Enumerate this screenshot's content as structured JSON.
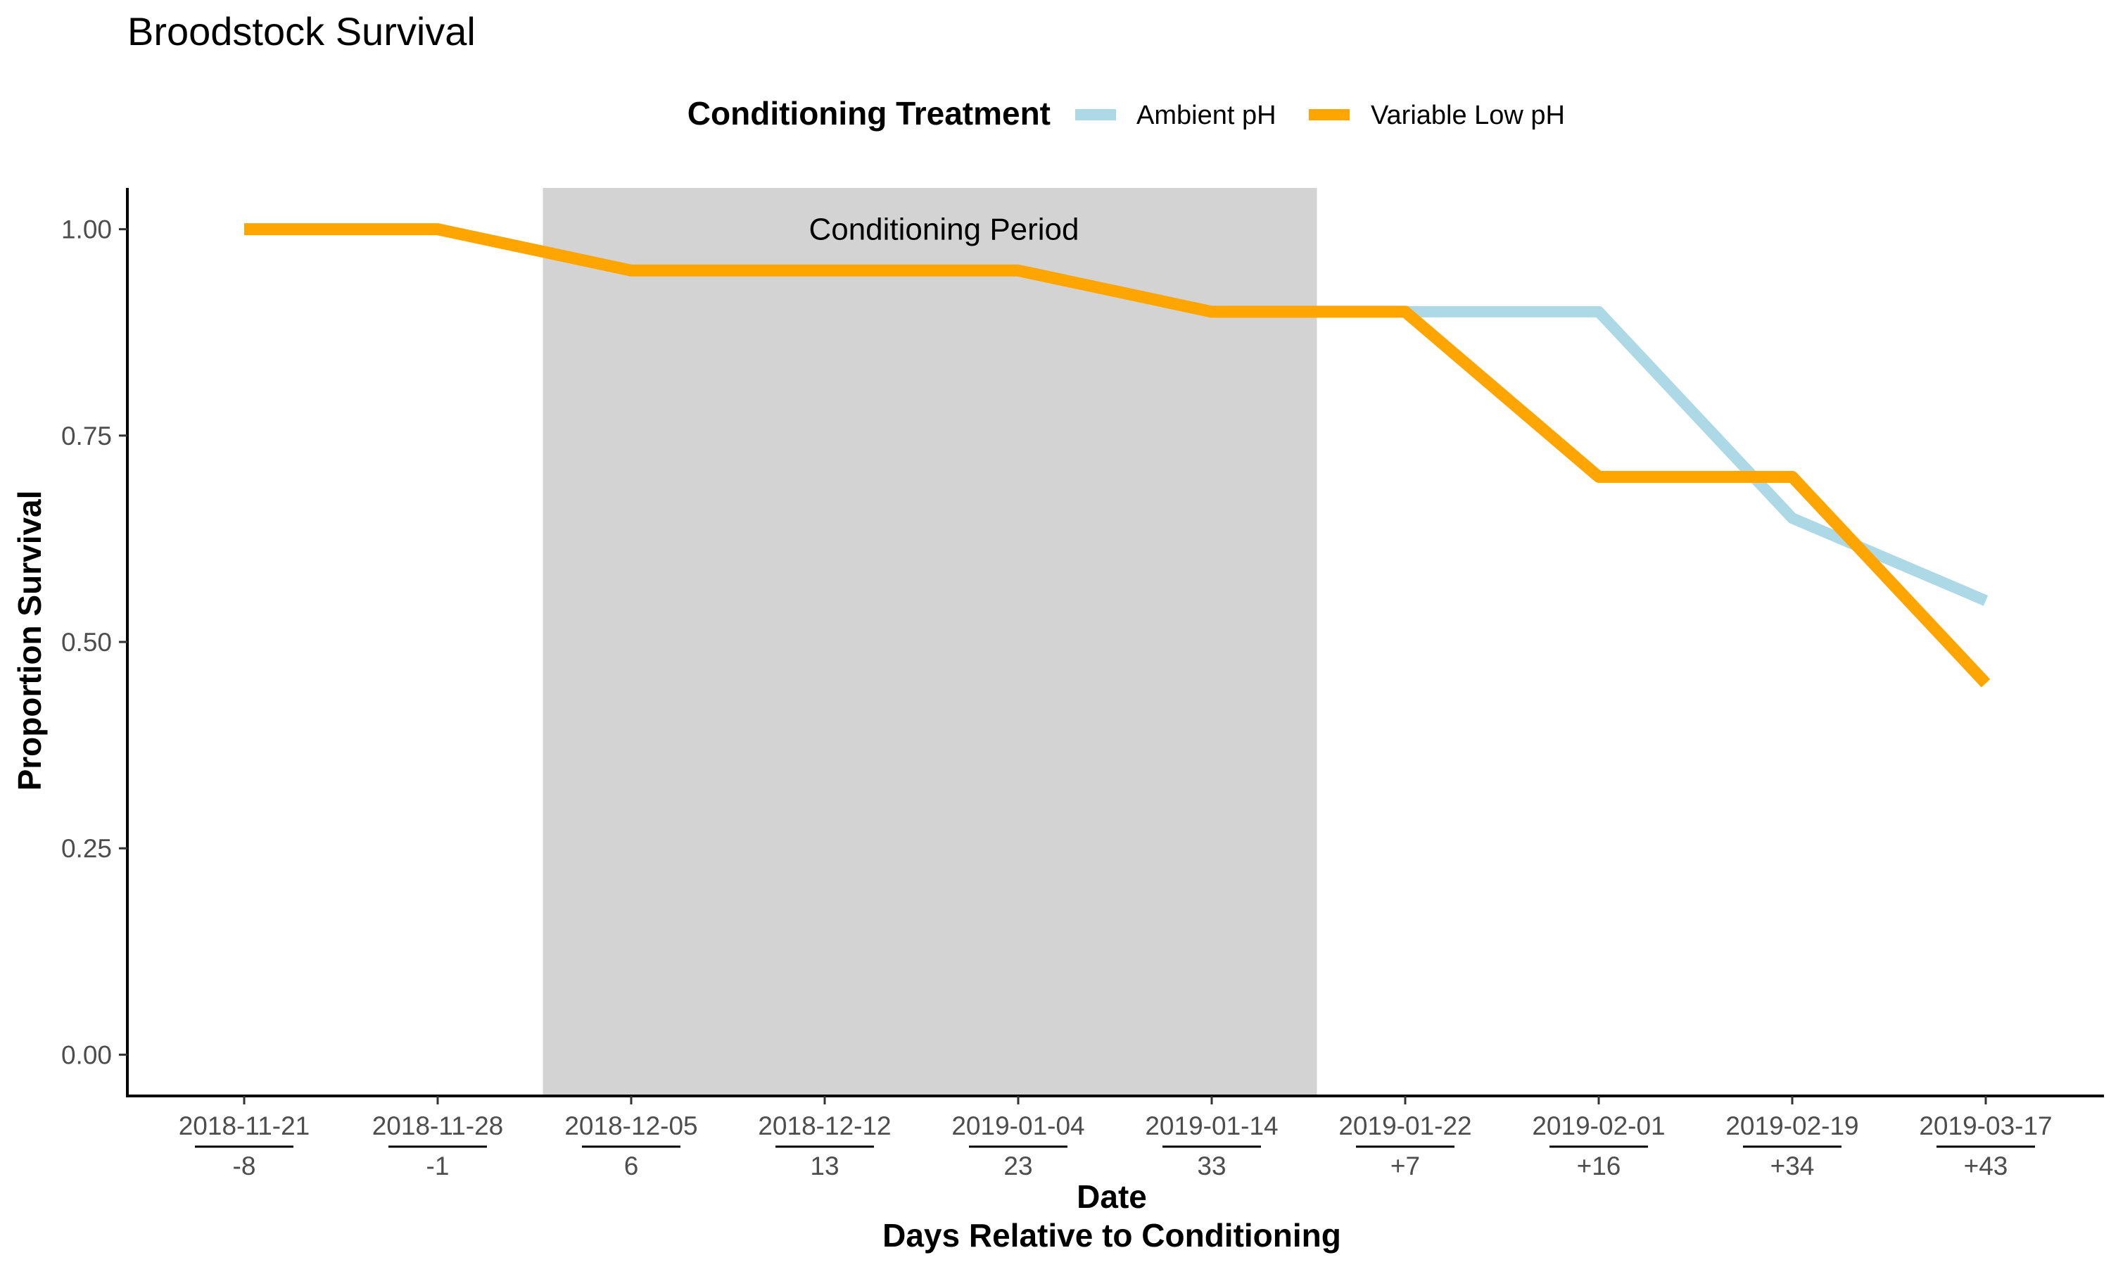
{
  "chart_data": {
    "type": "line",
    "title": "Broodstock Survival",
    "xlabel": "Date",
    "xlabel2": "Days Relative to Conditioning",
    "ylabel": "Proportion Survival",
    "ylim": [
      0,
      1
    ],
    "y_ticks": [
      "0.00",
      "0.25",
      "0.50",
      "0.75",
      "1.00"
    ],
    "y_tick_values": [
      0,
      0.25,
      0.5,
      0.75,
      1.0
    ],
    "categories": [
      "2018-11-21",
      "2018-11-28",
      "2018-12-05",
      "2018-12-12",
      "2019-01-04",
      "2019-01-14",
      "2019-01-22",
      "2019-02-01",
      "2019-02-19",
      "2019-03-17"
    ],
    "days_relative": [
      "-8",
      "-1",
      "6",
      "13",
      "23",
      "33",
      "+7",
      "+16",
      "+34",
      "+43"
    ],
    "legend": {
      "title": "Conditioning Treatment",
      "placement": "top"
    },
    "series": [
      {
        "name": "Ambient pH",
        "color": "#add8e6",
        "values": [
          1.0,
          1.0,
          0.95,
          0.95,
          0.95,
          0.9,
          0.9,
          0.9,
          0.65,
          0.55
        ]
      },
      {
        "name": "Variable Low pH",
        "color": "#ffa500",
        "values": [
          1.0,
          1.0,
          0.95,
          0.95,
          0.95,
          0.9,
          0.9,
          0.7,
          0.7,
          0.45
        ]
      }
    ],
    "annotation": {
      "label": "Conditioning Period",
      "x_start": 1.5,
      "x_end": 5.5,
      "color": "#d3d3d3"
    },
    "grid": false
  }
}
